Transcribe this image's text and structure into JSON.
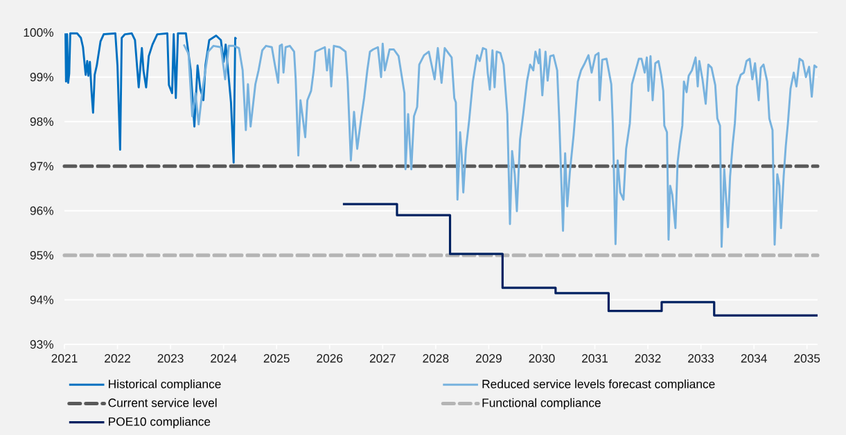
{
  "chart_data": {
    "type": "line",
    "xlim": [
      2021,
      2035.2
    ],
    "xticks": [
      2021,
      2022,
      2023,
      2024,
      2025,
      2026,
      2027,
      2028,
      2029,
      2030,
      2031,
      2032,
      2033,
      2034,
      2035
    ],
    "ylim": [
      93,
      100
    ],
    "yticks": [
      {
        "value": 93,
        "label": "93%"
      },
      {
        "value": 94,
        "label": "94%"
      },
      {
        "value": 95,
        "label": "95%"
      },
      {
        "value": 96,
        "label": "96%"
      },
      {
        "value": 97,
        "label": "97%"
      },
      {
        "value": 98,
        "label": "98%"
      },
      {
        "value": 99,
        "label": "99%"
      },
      {
        "value": 100,
        "label": "100%"
      }
    ],
    "grid": "y",
    "legend": "bottom",
    "series": [
      {
        "name": "Reduced service levels forecast compliance",
        "color": "#77b2de",
        "x": [
          2023.25,
          2023.34,
          2023.41,
          2023.47,
          2023.53,
          2023.6,
          2023.71,
          2023.81,
          2023.95,
          2024.03,
          2024.1,
          2024.2,
          2024.29,
          2024.36,
          2024.42,
          2024.46,
          2024.51,
          2024.6,
          2024.66,
          2024.73,
          2024.8,
          2024.91,
          2024.97,
          2025.03,
          2025.06,
          2025.1,
          2025.13,
          2025.17,
          2025.25,
          2025.33,
          2025.36,
          2025.41,
          2025.45,
          2025.49,
          2025.54,
          2025.58,
          2025.65,
          2025.7,
          2025.73,
          2025.82,
          2025.91,
          2025.95,
          2025.99,
          2026.03,
          2026.08,
          2026.19,
          2026.3,
          2026.34,
          2026.4,
          2026.46,
          2026.52,
          2026.6,
          2026.65,
          2026.71,
          2026.76,
          2026.82,
          2026.91,
          2026.97,
          2027.0,
          2027.04,
          2027.13,
          2027.21,
          2027.3,
          2027.41,
          2027.43,
          2027.48,
          2027.54,
          2027.59,
          2027.65,
          2027.69,
          2027.78,
          2027.87,
          2027.98,
          2028.04,
          2028.11,
          2028.17,
          2028.3,
          2028.35,
          2028.38,
          2028.41,
          2028.46,
          2028.49,
          2028.52,
          2028.57,
          2028.63,
          2028.7,
          2028.78,
          2028.83,
          2028.89,
          2028.95,
          2028.98,
          2029.02,
          2029.07,
          2029.11,
          2029.15,
          2029.22,
          2029.28,
          2029.35,
          2029.4,
          2029.44,
          2029.49,
          2029.53,
          2029.59,
          2029.65,
          2029.72,
          2029.78,
          2029.84,
          2029.88,
          2029.94,
          2029.96,
          2030.01,
          2030.07,
          2030.11,
          2030.16,
          2030.22,
          2030.29,
          2030.33,
          2030.4,
          2030.44,
          2030.48,
          2030.53,
          2030.6,
          2030.68,
          2030.74,
          2030.81,
          2030.88,
          2030.94,
          2031.01,
          2031.07,
          2031.09,
          2031.14,
          2031.22,
          2031.31,
          2031.34,
          2031.39,
          2031.43,
          2031.48,
          2031.54,
          2031.59,
          2031.66,
          2031.7,
          2031.77,
          2031.83,
          2031.88,
          2031.94,
          2031.98,
          2032.01,
          2032.05,
          2032.09,
          2032.14,
          2032.2,
          2032.25,
          2032.29,
          2032.31,
          2032.36,
          2032.39,
          2032.42,
          2032.46,
          2032.52,
          2032.56,
          2032.6,
          2032.65,
          2032.68,
          2032.73,
          2032.77,
          2032.83,
          2032.9,
          2032.94,
          2032.97,
          2033.03,
          2033.09,
          2033.14,
          2033.2,
          2033.27,
          2033.31,
          2033.36,
          2033.39,
          2033.44,
          2033.51,
          2033.55,
          2033.6,
          2033.64,
          2033.68,
          2033.75,
          2033.81,
          2033.86,
          2033.92,
          2033.97,
          2034.02,
          2034.09,
          2034.13,
          2034.18,
          2034.25,
          2034.29,
          2034.35,
          2034.39,
          2034.44,
          2034.48,
          2034.51,
          2034.56,
          2034.6,
          2034.64,
          2034.69,
          2034.75,
          2034.8,
          2034.86,
          2034.92,
          2034.98,
          2035.04,
          2035.09,
          2035.14,
          2035.19
        ],
        "values": [
          99.73,
          99.52,
          98.12,
          98.64,
          97.94,
          98.69,
          99.57,
          99.7,
          99.67,
          98.95,
          99.7,
          99.7,
          99.65,
          99.15,
          97.81,
          98.84,
          97.89,
          98.84,
          99.15,
          99.6,
          99.7,
          99.67,
          99.26,
          98.87,
          99.7,
          99.73,
          99.1,
          99.67,
          99.7,
          99.57,
          98.95,
          97.24,
          98.48,
          98.12,
          97.65,
          98.48,
          98.69,
          99.15,
          99.57,
          99.62,
          99.67,
          99.15,
          99.62,
          98.79,
          99.7,
          99.67,
          99.57,
          98.9,
          97.13,
          98.22,
          97.39,
          98.12,
          98.53,
          99.15,
          99.57,
          99.62,
          99.67,
          99.0,
          99.75,
          99.15,
          99.62,
          99.62,
          99.47,
          98.64,
          96.93,
          98.17,
          96.93,
          98.12,
          98.33,
          99.28,
          99.49,
          99.57,
          98.95,
          99.65,
          98.87,
          99.65,
          99.44,
          98.53,
          98.43,
          96.25,
          97.76,
          97.24,
          96.41,
          97.39,
          98.02,
          98.9,
          99.49,
          99.36,
          99.65,
          99.62,
          99.1,
          98.72,
          99.6,
          98.77,
          99.57,
          99.54,
          99.28,
          98.17,
          95.7,
          97.34,
          96.82,
          95.99,
          97.6,
          98.17,
          98.9,
          99.28,
          99.15,
          99.57,
          99.31,
          99.62,
          98.59,
          99.57,
          98.92,
          99.47,
          99.49,
          99.15,
          98.02,
          95.55,
          97.29,
          96.1,
          96.88,
          97.7,
          98.9,
          99.15,
          99.31,
          99.49,
          99.1,
          99.49,
          99.54,
          98.48,
          99.39,
          99.41,
          98.84,
          97.91,
          95.25,
          97.13,
          96.41,
          96.25,
          97.39,
          97.96,
          98.84,
          99.15,
          99.41,
          99.41,
          99.1,
          99.44,
          98.69,
          99.47,
          98.48,
          99.31,
          99.36,
          99.05,
          98.69,
          97.91,
          97.76,
          95.35,
          96.56,
          96.36,
          95.61,
          97.08,
          97.5,
          97.91,
          98.9,
          98.66,
          99.03,
          99.15,
          99.44,
          98.79,
          99.36,
          98.95,
          98.4,
          99.28,
          99.21,
          98.82,
          98.07,
          97.91,
          95.19,
          96.93,
          95.63,
          96.77,
          97.5,
          97.96,
          98.79,
          99.05,
          99.1,
          99.36,
          99.41,
          98.95,
          99.31,
          98.48,
          99.21,
          99.28,
          98.9,
          98.07,
          97.81,
          95.24,
          96.82,
          96.56,
          95.61,
          96.77,
          97.45,
          97.96,
          98.74,
          99.1,
          98.79,
          99.41,
          99.36,
          99.0,
          99.23,
          98.56,
          99.26,
          99.21
        ]
      },
      {
        "name": "Historical compliance",
        "color": "#0070c0",
        "x": [
          2021.02,
          2021.03,
          2021.05,
          2021.07,
          2021.09,
          2021.11,
          2021.24,
          2021.31,
          2021.35,
          2021.4,
          2021.43,
          2021.45,
          2021.48,
          2021.51,
          2021.54,
          2021.57,
          2021.61,
          2021.68,
          2021.74,
          2021.96,
          2022.0,
          2022.05,
          2022.08,
          2022.14,
          2022.27,
          2022.33,
          2022.4,
          2022.46,
          2022.49,
          2022.54,
          2022.59,
          2022.66,
          2022.75,
          2022.94,
          2022.97,
          2023.03,
          2023.06,
          2023.1,
          2023.14,
          2023.29,
          2023.38,
          2023.45,
          2023.51,
          2023.56,
          2023.62,
          2023.66,
          2023.73,
          2023.86,
          2023.95,
          2024.0,
          2024.04,
          2024.1,
          2024.14,
          2024.19,
          2024.22,
          2024.24
        ],
        "values": [
          99.98,
          98.9,
          99.96,
          98.87,
          99.08,
          99.98,
          99.98,
          99.88,
          99.67,
          99.05,
          99.36,
          99.03,
          99.34,
          98.69,
          98.2,
          99.05,
          99.26,
          99.8,
          99.96,
          99.98,
          99.26,
          97.37,
          99.88,
          99.96,
          99.98,
          99.83,
          98.77,
          99.65,
          99.15,
          98.77,
          99.47,
          99.73,
          99.96,
          99.98,
          98.82,
          98.64,
          99.96,
          98.53,
          99.98,
          99.98,
          99.15,
          97.89,
          99.26,
          98.74,
          98.48,
          99.28,
          99.83,
          99.93,
          99.83,
          99.34,
          99.73,
          98.95,
          98.43,
          97.08,
          99.88,
          99.85
        ]
      },
      {
        "name": "POE10 compliance",
        "type": "step",
        "color": "#002060",
        "x": [
          2026.25,
          2027.27,
          2028.27,
          2029.26,
          2030.26,
          2031.26,
          2032.26,
          2033.25,
          2035.2
        ],
        "values": [
          96.15,
          95.9,
          95.03,
          94.27,
          94.15,
          93.75,
          93.95,
          93.65,
          93.65
        ]
      }
    ],
    "ref_lines": [
      {
        "axis": "y",
        "value": 97,
        "label": "Current service level",
        "color": "#595959",
        "line_style": "dashed"
      },
      {
        "axis": "y",
        "value": 95,
        "label": "Functional compliance",
        "color": "#b4b4b4",
        "line_style": "dashed"
      }
    ]
  }
}
